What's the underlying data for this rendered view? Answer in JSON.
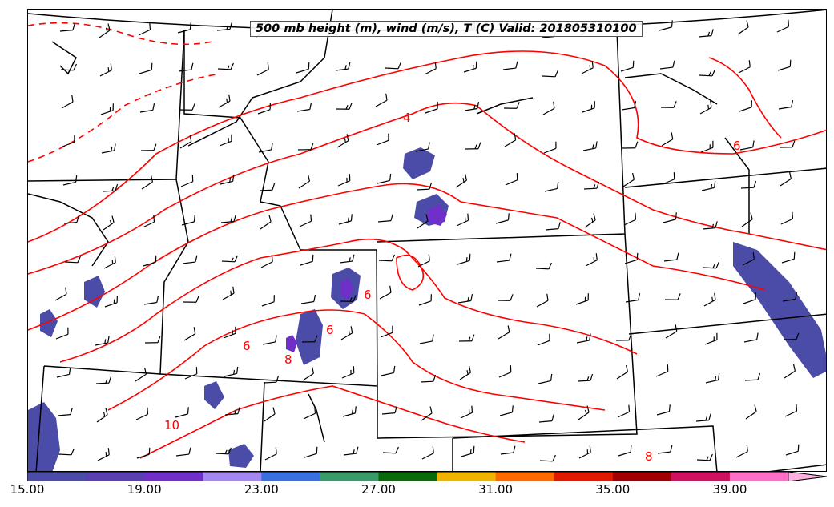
{
  "title": "500 mb height (m), wind (m/s), T (C) Valid: 201805310100",
  "temperature_contour_labels": [
    "4",
    "6",
    "6",
    "6",
    "6",
    "8",
    "8",
    "10"
  ],
  "colors": {
    "temperature_contour": "#ff0000",
    "boundaries": "#000000",
    "wind_barbs": "#000000"
  },
  "colorbar": {
    "colors": [
      "#4b4ba8",
      "#5a3fb0",
      "#6f2fc8",
      "#a488f0",
      "#3a6fe0",
      "#3a9a68",
      "#0a6a0a",
      "#f0b400",
      "#ff6a00",
      "#e01a00",
      "#a00000",
      "#d01060",
      "#ff6fc8"
    ],
    "extend_color": "#ffb0e0",
    "tick_labels": [
      "15.00",
      "19.00",
      "23.00",
      "27.00",
      "31.00",
      "35.00",
      "39.00"
    ]
  },
  "wind_barbs": [
    {
      "direction": "W",
      "speed_ms": 10
    }
  ]
}
